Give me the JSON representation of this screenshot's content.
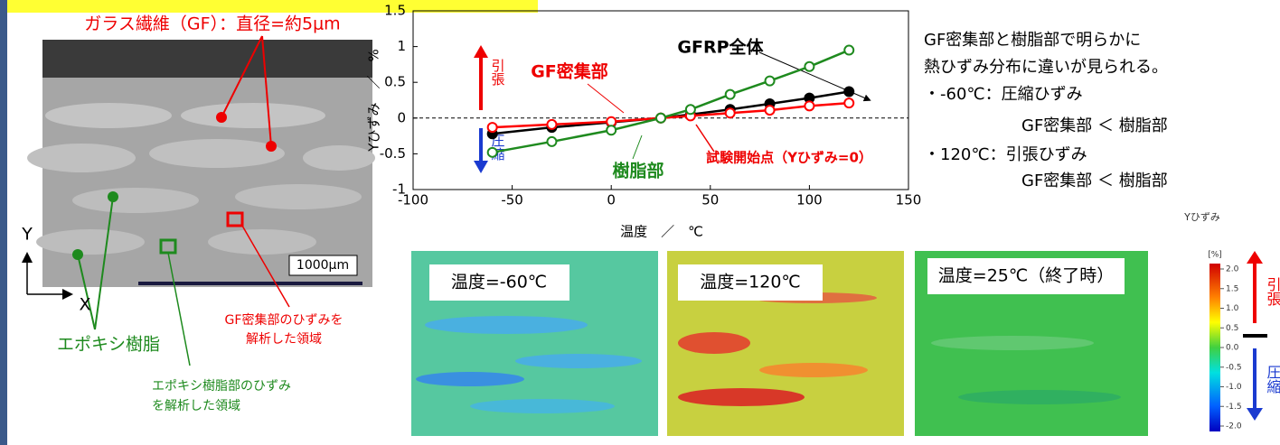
{
  "chart_data": {
    "type": "line",
    "x": [
      -60,
      -30,
      0,
      25,
      40,
      60,
      80,
      100,
      120
    ],
    "series": [
      {
        "name": "GFRP全体",
        "color": "#000000",
        "values": [
          -0.22,
          -0.13,
          -0.06,
          0,
          0.05,
          0.12,
          0.2,
          0.28,
          0.37
        ]
      },
      {
        "name": "GF密集部",
        "color": "#ff0000",
        "values": [
          -0.13,
          -0.09,
          -0.05,
          0,
          0.03,
          0.07,
          0.11,
          0.17,
          0.21
        ]
      },
      {
        "name": "樹脂部",
        "color": "#1e8a1e",
        "values": [
          -0.48,
          -0.33,
          -0.17,
          0,
          0.12,
          0.33,
          0.52,
          0.72,
          0.95
        ]
      }
    ],
    "xlim": [
      -100,
      150
    ],
    "xticks": [
      -100,
      -50,
      0,
      50,
      100,
      150
    ],
    "ylim": [
      -1,
      1.5
    ],
    "yticks": [
      -1,
      -0.5,
      0,
      0.5,
      1,
      1.5
    ],
    "x_label": "温度　／　℃",
    "y_label": "Yひずみ　／　%",
    "annotations": {
      "start": "試験開始点（Yひずみ=0）",
      "tension": "引張",
      "compression": "圧縮"
    }
  },
  "colorbar": {
    "title": "Yひずみ",
    "unit": "[%]",
    "lim": [
      -2,
      2
    ],
    "ticks": [
      {
        "value": 2,
        "label": "2.0"
      },
      1.5,
      {
        "value": 1,
        "label": "1.0"
      },
      0.5,
      {
        "value": 0,
        "label": "0.0"
      },
      -0.5,
      {
        "value": -1,
        "label": "-1.0"
      },
      -1.5,
      {
        "value": -2,
        "label": "-2.0"
      }
    ],
    "tension": "引張",
    "compression": "圧縮"
  },
  "micrograph": {
    "fiber": "ガラス繊維（GF）：直径=約5μm",
    "scale": "1000μm",
    "y_axis": "Y",
    "x_axis": "X",
    "epoxy": "エポキシ樹脂",
    "gf_region": [
      "GF密集部のひずみを",
      "解析した領域"
    ],
    "epoxy_region": [
      "エポキシ樹脂部のひずみ",
      "を解析した領域"
    ]
  },
  "maps": [
    "温度=-60℃",
    "温度=120℃",
    "温度=25℃（終了時）"
  ],
  "summary": [
    "GF密集部と樹脂部で明らかに",
    "熱ひずみ分布に違いが見られる。",
    "・-60℃：圧縮ひずみ",
    "GF密集部 ＜ 樹脂部",
    "・120℃：引張ひずみ",
    "GF密集部 ＜ 樹脂部"
  ]
}
